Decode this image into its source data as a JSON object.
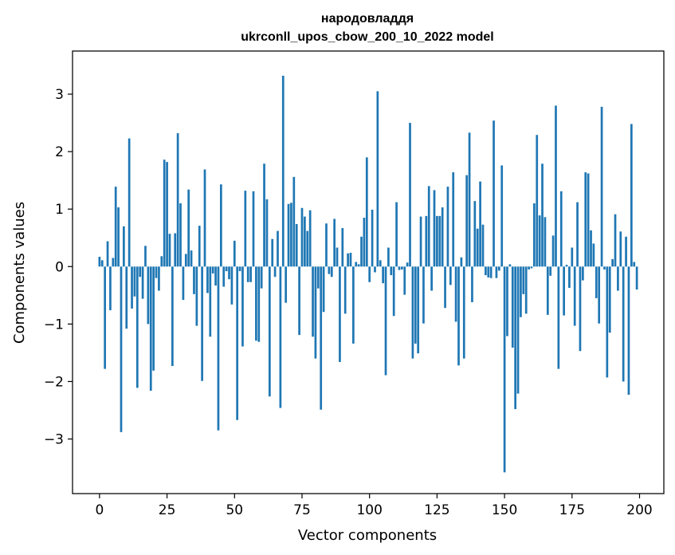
{
  "chart_data": {
    "type": "bar",
    "title": "народовладдя",
    "subtitle": "ukrconll_upos_cbow_200_10_2022 model",
    "xlabel": "Vector components",
    "ylabel": "Components values",
    "xlim": [
      -10,
      209
    ],
    "ylim": [
      -3.95,
      3.75
    ],
    "xticks": [
      0,
      25,
      50,
      75,
      100,
      125,
      150,
      175,
      200
    ],
    "yticks": [
      -3,
      -2,
      -1,
      0,
      1,
      2,
      3
    ],
    "xtick_labels": [
      "0",
      "25",
      "50",
      "75",
      "100",
      "125",
      "150",
      "175",
      "200"
    ],
    "ytick_labels": [
      "−3",
      "−2",
      "−1",
      "0",
      "1",
      "2",
      "3"
    ],
    "color": "#1f77b4",
    "series": [
      {
        "name": "народовладдя",
        "values": [
          0.17,
          0.11,
          -1.78,
          0.44,
          -0.76,
          0.15,
          1.39,
          1.03,
          -2.88,
          0.7,
          -1.08,
          2.23,
          -0.73,
          -0.52,
          -2.11,
          -0.18,
          -0.56,
          0.36,
          -1.0,
          -2.16,
          -1.81,
          -0.2,
          -0.42,
          0.18,
          1.86,
          1.82,
          0.57,
          -1.73,
          0.58,
          2.32,
          1.1,
          -0.58,
          0.22,
          1.34,
          0.28,
          -0.48,
          -1.03,
          0.71,
          -1.99,
          1.69,
          -0.46,
          -1.22,
          -0.12,
          -0.33,
          -2.85,
          1.43,
          -0.35,
          -0.08,
          -0.22,
          -0.66,
          0.45,
          -2.67,
          -0.08,
          -1.39,
          1.32,
          -0.27,
          -0.27,
          1.31,
          -1.29,
          -1.31,
          -0.38,
          1.79,
          1.17,
          -2.26,
          0.48,
          -0.18,
          0.62,
          -2.46,
          3.32,
          -0.63,
          1.09,
          1.11,
          1.56,
          0.74,
          -1.19,
          1.02,
          0.87,
          0.62,
          0.98,
          -1.22,
          -1.6,
          -0.38,
          -2.49,
          -0.79,
          0.75,
          -0.13,
          -0.18,
          0.83,
          0.33,
          -1.66,
          0.67,
          -0.82,
          0.23,
          0.24,
          -1.34,
          0.08,
          0.04,
          0.52,
          0.85,
          1.9,
          -0.27,
          0.99,
          -0.1,
          3.05,
          0.11,
          -0.29,
          -1.89,
          0.33,
          -0.15,
          -0.86,
          1.12,
          -0.06,
          -0.05,
          -0.49,
          0.07,
          2.5,
          -1.6,
          -1.34,
          -1.51,
          0.87,
          -0.99,
          0.88,
          1.4,
          -0.42,
          1.33,
          0.88,
          0.88,
          1.03,
          -0.72,
          1.39,
          -0.32,
          1.64,
          -0.96,
          -1.72,
          0.16,
          -1.6,
          1.59,
          2.33,
          -0.62,
          1.14,
          0.66,
          1.48,
          0.73,
          -0.15,
          -0.19,
          -0.2,
          2.54,
          -0.2,
          -0.07,
          1.76,
          -3.58,
          -1.21,
          0.04,
          -1.41,
          -2.48,
          -2.21,
          -0.88,
          -0.48,
          -0.82,
          -0.05,
          -0.03,
          1.1,
          2.29,
          0.89,
          1.79,
          0.86,
          -0.84,
          -0.16,
          0.54,
          2.8,
          -1.78,
          1.31,
          -0.85,
          0.03,
          -0.37,
          0.33,
          -1.03,
          1.12,
          -1.47,
          -0.24,
          1.64,
          1.62,
          0.63,
          0.4,
          -0.55,
          -0.99,
          2.78,
          -0.05,
          -1.93,
          -1.15,
          0.13,
          0.91,
          -0.42,
          0.61,
          -2.0,
          0.52,
          -2.23,
          2.48,
          0.08,
          -0.4
        ]
      }
    ]
  }
}
